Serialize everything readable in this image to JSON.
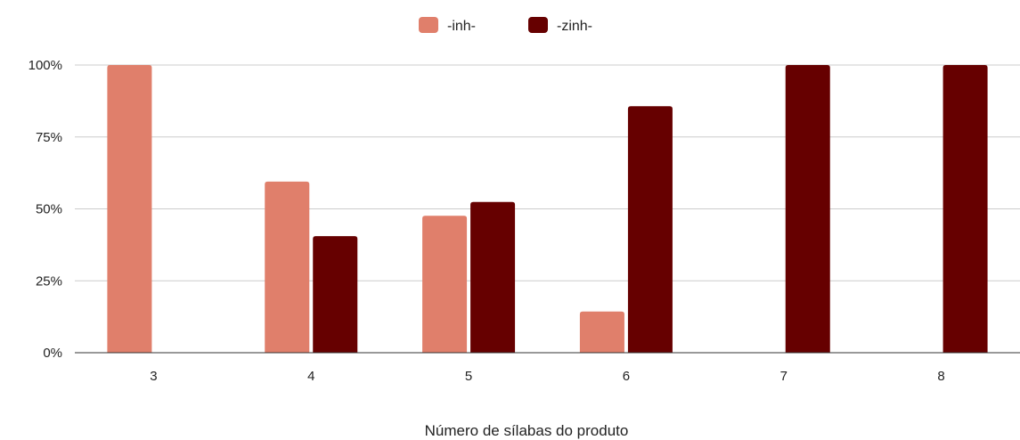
{
  "chart_data": {
    "type": "bar",
    "title": "",
    "xlabel": "Número de sílabas do produto",
    "ylabel": "",
    "categories": [
      "3",
      "4",
      "5",
      "6",
      "7",
      "8"
    ],
    "series": [
      {
        "name": "-inh-",
        "color": "#e07f6b",
        "values": [
          100,
          59.5,
          47.6,
          14.3,
          0,
          0
        ]
      },
      {
        "name": "-zinh-",
        "color": "#660000",
        "values": [
          0,
          40.5,
          52.4,
          85.7,
          100,
          100
        ]
      }
    ],
    "ylim": [
      0,
      100
    ],
    "yticks": [
      "0%",
      "25%",
      "50%",
      "75%",
      "100%"
    ],
    "grid": true,
    "legend_position": "top-center"
  }
}
